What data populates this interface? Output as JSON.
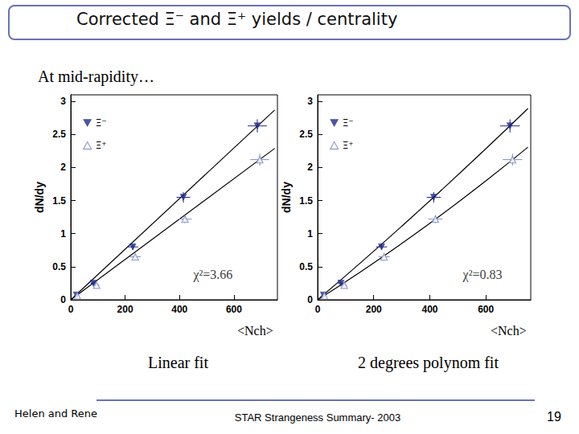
{
  "slide": {
    "title": "Corrected Ξ⁻ and Ξ⁺ yields / centrality",
    "subtitle": "At mid-rapidity…",
    "footer": {
      "left": "Helen and Rene",
      "center": "STAR Strangeness Summary- 2003",
      "page": 19
    }
  },
  "chart_data": [
    {
      "type": "scatter",
      "title": "Linear fit",
      "x_label": "<Nch>",
      "y_label": "dN/dy",
      "xlim": [
        0,
        760
      ],
      "xticks": [
        0,
        200,
        400,
        600
      ],
      "ylim": [
        0,
        3.1
      ],
      "yticks": [
        0,
        0.5,
        1,
        1.5,
        2,
        2.5,
        3
      ],
      "grid": false,
      "legend": "upper left",
      "annotations": [
        {
          "text": "χ²=3.66",
          "x": 523,
          "y": 0.38
        }
      ],
      "series": [
        {
          "name": "Ξ⁻",
          "color": "#1f2a8a",
          "marker": "triangle_down",
          "x": [
            21,
            83,
            228,
            414,
            686
          ],
          "values": [
            0.07,
            0.25,
            0.8,
            1.55,
            2.63
          ],
          "xerr": [
            8,
            10,
            20,
            25,
            35
          ],
          "yerr": [
            0.02,
            0.03,
            0.04,
            0.08,
            0.1
          ],
          "fit": {
            "x": [
              0,
              750
            ],
            "values": [
              0,
              2.87
            ]
          }
        },
        {
          "name": "Ξ⁺",
          "color": "#7f8fc4",
          "marker": "open_triangle",
          "x": [
            24,
            95,
            237,
            420,
            695
          ],
          "values": [
            0.06,
            0.22,
            0.65,
            1.22,
            2.12
          ],
          "xerr": [
            8,
            10,
            20,
            25,
            35
          ],
          "yerr": [
            0.02,
            0.03,
            0.04,
            0.06,
            0.09
          ],
          "fit": {
            "x": [
              0,
              750
            ],
            "values": [
              0,
              2.29
            ]
          }
        }
      ]
    },
    {
      "type": "scatter",
      "title": "2 degrees polynom fit",
      "x_label": "<Nch>",
      "y_label": "dN/dy",
      "xlim": [
        0,
        760
      ],
      "xticks": [
        0,
        200,
        400,
        600
      ],
      "ylim": [
        0,
        3.1
      ],
      "yticks": [
        0,
        0.5,
        1,
        1.5,
        2,
        2.5,
        3
      ],
      "grid": false,
      "legend": "upper left",
      "annotations": [
        {
          "text": "χ²=0.83",
          "x": 588,
          "y": 0.38
        }
      ],
      "series": [
        {
          "name": "Ξ⁻",
          "color": "#1f2a8a",
          "marker": "triangle_down",
          "x": [
            21,
            83,
            228,
            414,
            686
          ],
          "values": [
            0.07,
            0.25,
            0.8,
            1.55,
            2.63
          ],
          "xerr": [
            8,
            10,
            20,
            25,
            35
          ],
          "yerr": [
            0.02,
            0.03,
            0.04,
            0.08,
            0.1
          ],
          "fit": {
            "x": [
              0,
              150,
              300,
              450,
              600,
              750
            ],
            "values": [
              0,
              0.549,
              1.113,
              1.692,
              2.285,
              2.893
            ]
          }
        },
        {
          "name": "Ξ⁺",
          "color": "#7f8fc4",
          "marker": "open_triangle",
          "x": [
            24,
            95,
            237,
            420,
            695
          ],
          "values": [
            0.06,
            0.22,
            0.65,
            1.22,
            2.12
          ],
          "xerr": [
            8,
            10,
            20,
            25,
            35
          ],
          "yerr": [
            0.02,
            0.03,
            0.04,
            0.06,
            0.09
          ],
          "fit": {
            "x": [
              0,
              150,
              300,
              450,
              600,
              750
            ],
            "values": [
              0,
              0.414,
              0.852,
              1.313,
              1.799,
              2.308
            ]
          }
        }
      ]
    }
  ]
}
